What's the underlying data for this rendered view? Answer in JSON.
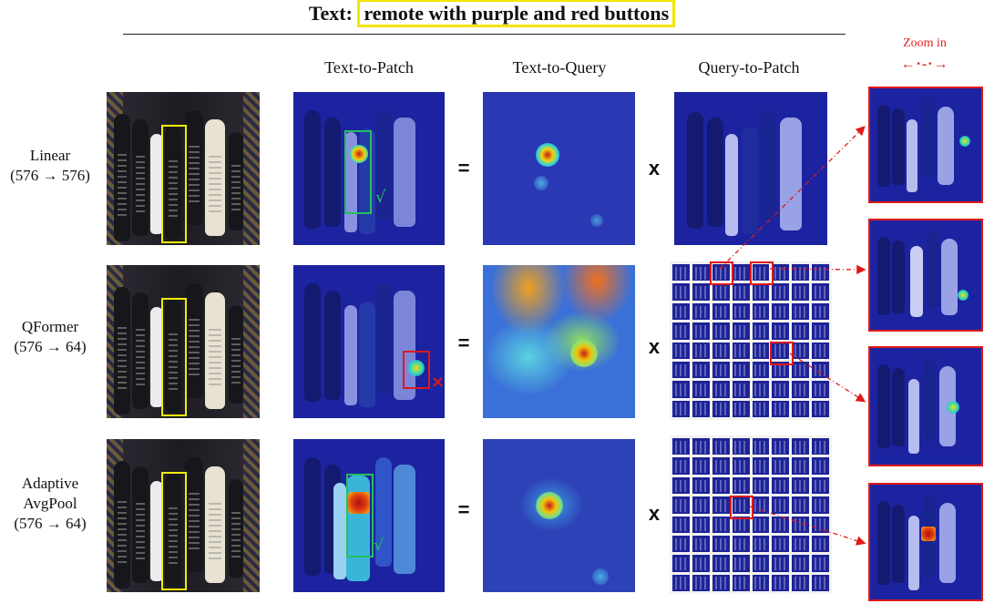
{
  "header": {
    "prefix": "Text:",
    "query": "remote with purple and red buttons"
  },
  "columns": {
    "text_to_patch": "Text-to-Patch",
    "text_to_query": "Text-to-Query",
    "query_to_patch": "Query-to-Patch",
    "zoom": "Zoom in",
    "zoom_arrow": "←·-·→"
  },
  "rows": [
    {
      "name": "Linear",
      "dims": "(576 → 576)",
      "op1": "=",
      "op2": "x"
    },
    {
      "name": "QFormer",
      "dims": "(576 → 64)",
      "op1": "=",
      "op2": "x"
    },
    {
      "name_line1": "Adaptive",
      "name_line2": "AvgPool",
      "dims": "(576 → 64)",
      "op1": "=",
      "op2": "x"
    }
  ],
  "marks": {
    "correct": "√",
    "wrong": "×"
  },
  "colors": {
    "highlight": "#f3e600",
    "correct_box": "#22c25a",
    "wrong_box": "#e01818",
    "heatmap_base": "#1c23a0"
  }
}
